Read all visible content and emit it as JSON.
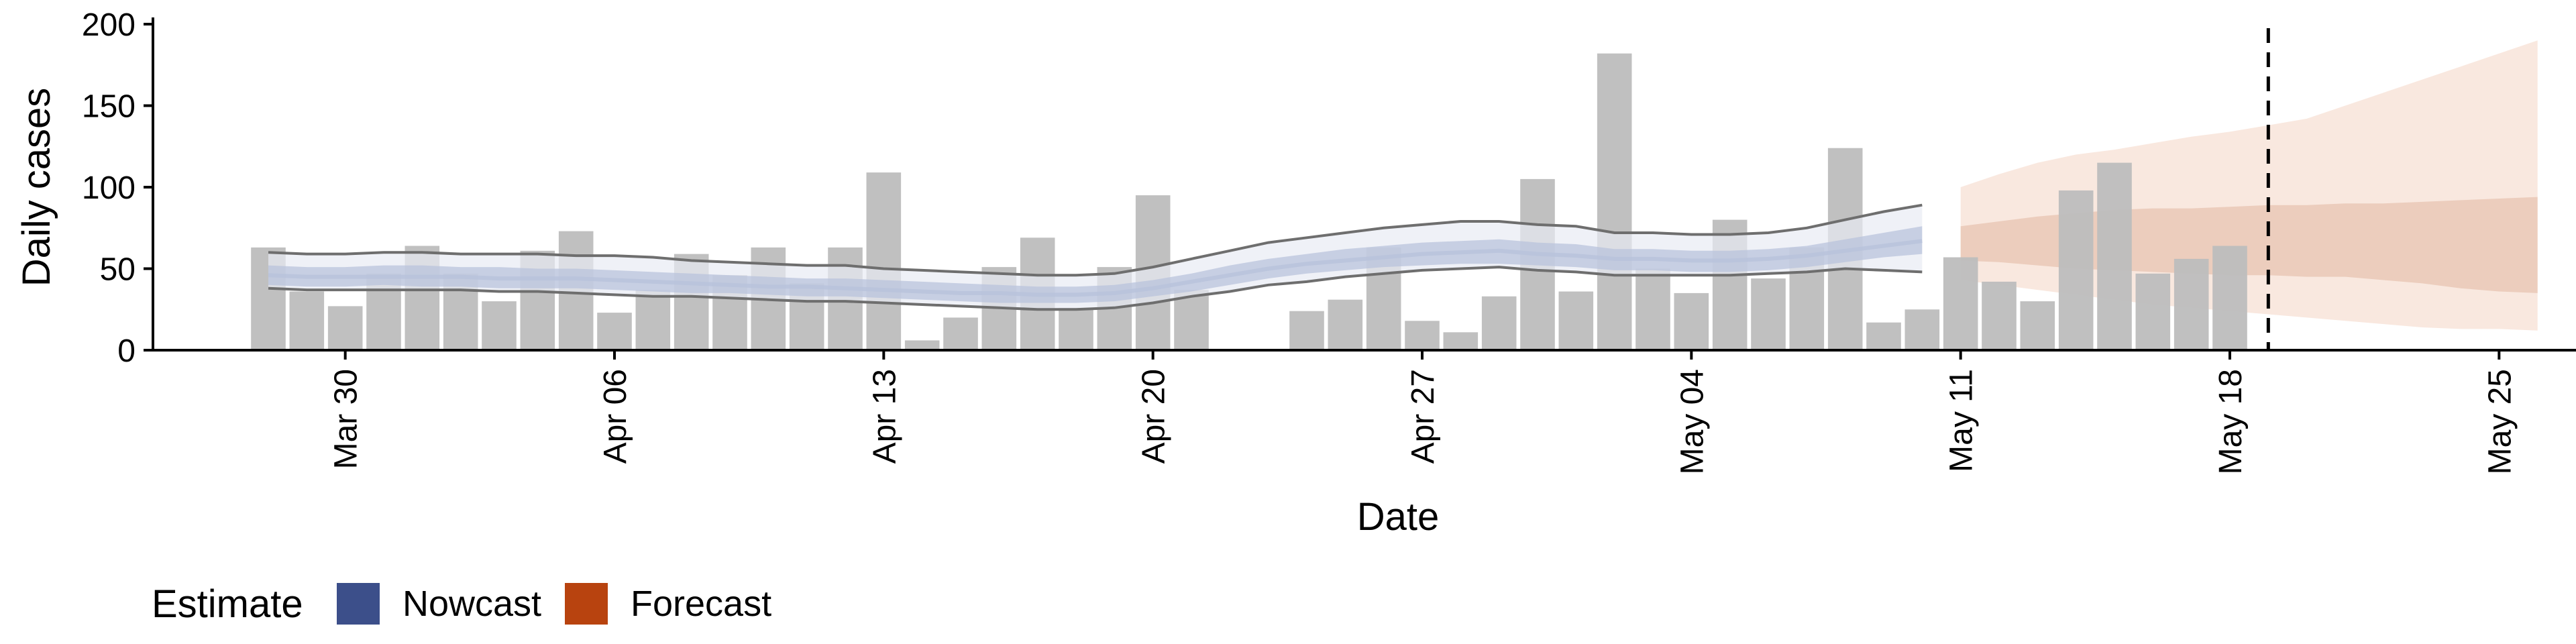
{
  "colors": {
    "bar": "#bdbdbd",
    "nowcast": "#3c4f8a",
    "nowcast_band": "#b9c3dc",
    "nowcast_outer": "#e8ebf4",
    "nowcast_line": "#6e6e6e",
    "forecast": "#b8430f",
    "forecast_inner": "#eccdbd",
    "forecast_outer": "#f9e8df",
    "vline": "#000000"
  },
  "chart_data": {
    "type": "bar",
    "title": "",
    "xlabel": "Date",
    "ylabel": "Daily cases",
    "ylim": [
      0,
      200
    ],
    "yticks": [
      0,
      50,
      100,
      150,
      200
    ],
    "xlim": [
      "2020-03-25",
      "2020-05-27"
    ],
    "xticks": [
      {
        "date": "2020-03-30",
        "label": "Mar 30"
      },
      {
        "date": "2020-04-06",
        "label": "Apr 06"
      },
      {
        "date": "2020-04-13",
        "label": "Apr 13"
      },
      {
        "date": "2020-04-20",
        "label": "Apr 20"
      },
      {
        "date": "2020-04-27",
        "label": "Apr 27"
      },
      {
        "date": "2020-05-04",
        "label": "May 04"
      },
      {
        "date": "2020-05-11",
        "label": "May 11"
      },
      {
        "date": "2020-05-18",
        "label": "May 18"
      },
      {
        "date": "2020-05-25",
        "label": "May 25"
      }
    ],
    "grid": false,
    "vline_date": "2020-05-19",
    "bars": {
      "start_date": "2020-03-28",
      "values": [
        63,
        36,
        27,
        47,
        64,
        47,
        30,
        61,
        73,
        23,
        37,
        59,
        46,
        63,
        41,
        63,
        109,
        6,
        20,
        51,
        69,
        26,
        51,
        95,
        37,
        null,
        null,
        24,
        31,
        63,
        18,
        11,
        33,
        105,
        36,
        182,
        50,
        35,
        80,
        44,
        63,
        124,
        17,
        25,
        57,
        42,
        30,
        98,
        115,
        47,
        56,
        64
      ]
    },
    "nowcast": {
      "start_date": "2020-03-28",
      "upper90": [
        60,
        59,
        59,
        60,
        60,
        59,
        59,
        59,
        58,
        58,
        57,
        55,
        54,
        53,
        52,
        52,
        50,
        49,
        48,
        47,
        46,
        46,
        47,
        51,
        56,
        61,
        66,
        69,
        72,
        75,
        77,
        79,
        79,
        77,
        76,
        72,
        72,
        71,
        71,
        72,
        75,
        80,
        85,
        89
      ],
      "upper50": [
        52,
        51,
        51,
        52,
        52,
        51,
        51,
        50,
        50,
        49,
        48,
        47,
        46,
        45,
        44,
        44,
        43,
        42,
        41,
        40,
        39,
        39,
        40,
        43,
        47,
        52,
        56,
        59,
        62,
        64,
        66,
        67,
        68,
        66,
        65,
        62,
        62,
        61,
        61,
        62,
        64,
        68,
        72,
        76
      ],
      "median": [
        46,
        45,
        45,
        45,
        45,
        45,
        44,
        44,
        44,
        43,
        42,
        41,
        40,
        39,
        39,
        38,
        37,
        36,
        35,
        35,
        34,
        34,
        35,
        38,
        42,
        46,
        50,
        53,
        55,
        57,
        59,
        60,
        61,
        59,
        58,
        56,
        56,
        55,
        55,
        56,
        58,
        61,
        64,
        67
      ],
      "lower50": [
        40,
        39,
        39,
        40,
        39,
        39,
        38,
        38,
        38,
        37,
        36,
        35,
        35,
        34,
        33,
        33,
        32,
        31,
        30,
        29,
        29,
        29,
        30,
        33,
        36,
        40,
        44,
        47,
        49,
        51,
        52,
        53,
        53,
        52,
        51,
        49,
        49,
        48,
        48,
        49,
        51,
        54,
        57,
        59
      ],
      "lower90": [
        38,
        37,
        37,
        37,
        37,
        37,
        36,
        36,
        35,
        34,
        33,
        33,
        32,
        31,
        30,
        30,
        29,
        28,
        27,
        26,
        25,
        25,
        26,
        29,
        33,
        36,
        40,
        42,
        45,
        47,
        49,
        50,
        51,
        49,
        48,
        46,
        46,
        46,
        46,
        47,
        48,
        50,
        49,
        48
      ]
    },
    "forecast": {
      "start_date": "2020-05-11",
      "upper90": [
        100,
        108,
        115,
        120,
        123,
        127,
        131,
        134,
        138,
        142,
        150,
        158,
        166,
        174,
        182,
        190
      ],
      "upper50": [
        76,
        79,
        82,
        84,
        86,
        87,
        87,
        88,
        89,
        89,
        90,
        90,
        91,
        92,
        93,
        94
      ],
      "lower50": [
        55,
        54,
        52,
        50,
        49,
        48,
        47,
        46,
        46,
        45,
        45,
        43,
        41,
        38,
        36,
        35
      ],
      "lower90": [
        43,
        40,
        37,
        34,
        31,
        28,
        26,
        24,
        22,
        20,
        18,
        16,
        14,
        13,
        13,
        12
      ]
    },
    "legend": {
      "title": "Estimate",
      "placement": "bottom-left",
      "entries": [
        {
          "label": "Nowcast",
          "color_key": "nowcast"
        },
        {
          "label": "Forecast",
          "color_key": "forecast"
        }
      ]
    }
  }
}
